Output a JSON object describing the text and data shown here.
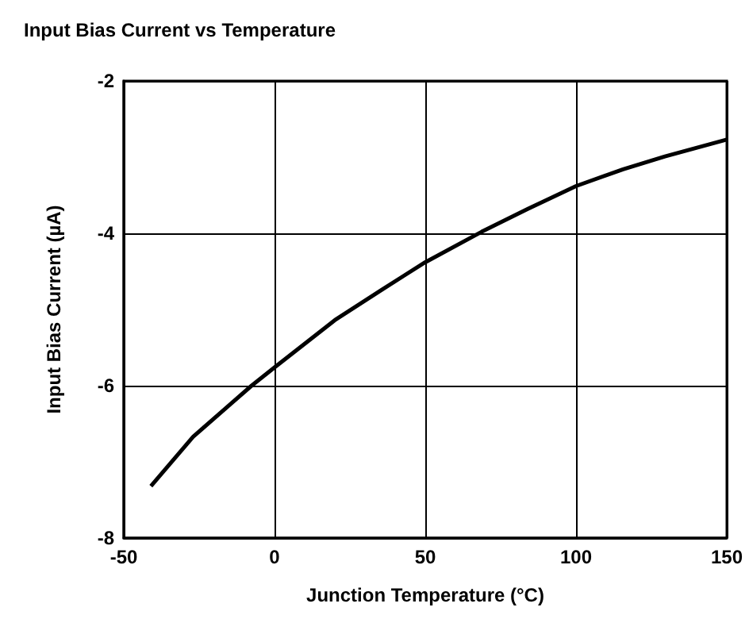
{
  "chart_data": {
    "type": "line",
    "title": "Input Bias Current vs Temperature",
    "xlabel": "Junction Temperature (°C)",
    "ylabel": "Input Bias Current (µA)",
    "x": [
      -41,
      -27,
      -7.6,
      0,
      20,
      35.6,
      50,
      68.7,
      84,
      100,
      115.6,
      129.5,
      150
    ],
    "series": [
      {
        "color": "#000000",
        "values": [
          -7.32,
          -6.67,
          -6.0,
          -5.76,
          -5.14,
          -4.74,
          -4.38,
          -3.98,
          -3.68,
          -3.38,
          -3.16,
          -2.99,
          -2.77
        ]
      }
    ],
    "xlim": [
      -50,
      150
    ],
    "xticks": [
      -50,
      0,
      50,
      100,
      150
    ],
    "ylim": [
      -8,
      -2
    ],
    "yticks": [
      -8,
      -6,
      -4,
      -2
    ],
    "grid": true,
    "marker": "none",
    "line_style": "solid"
  }
}
